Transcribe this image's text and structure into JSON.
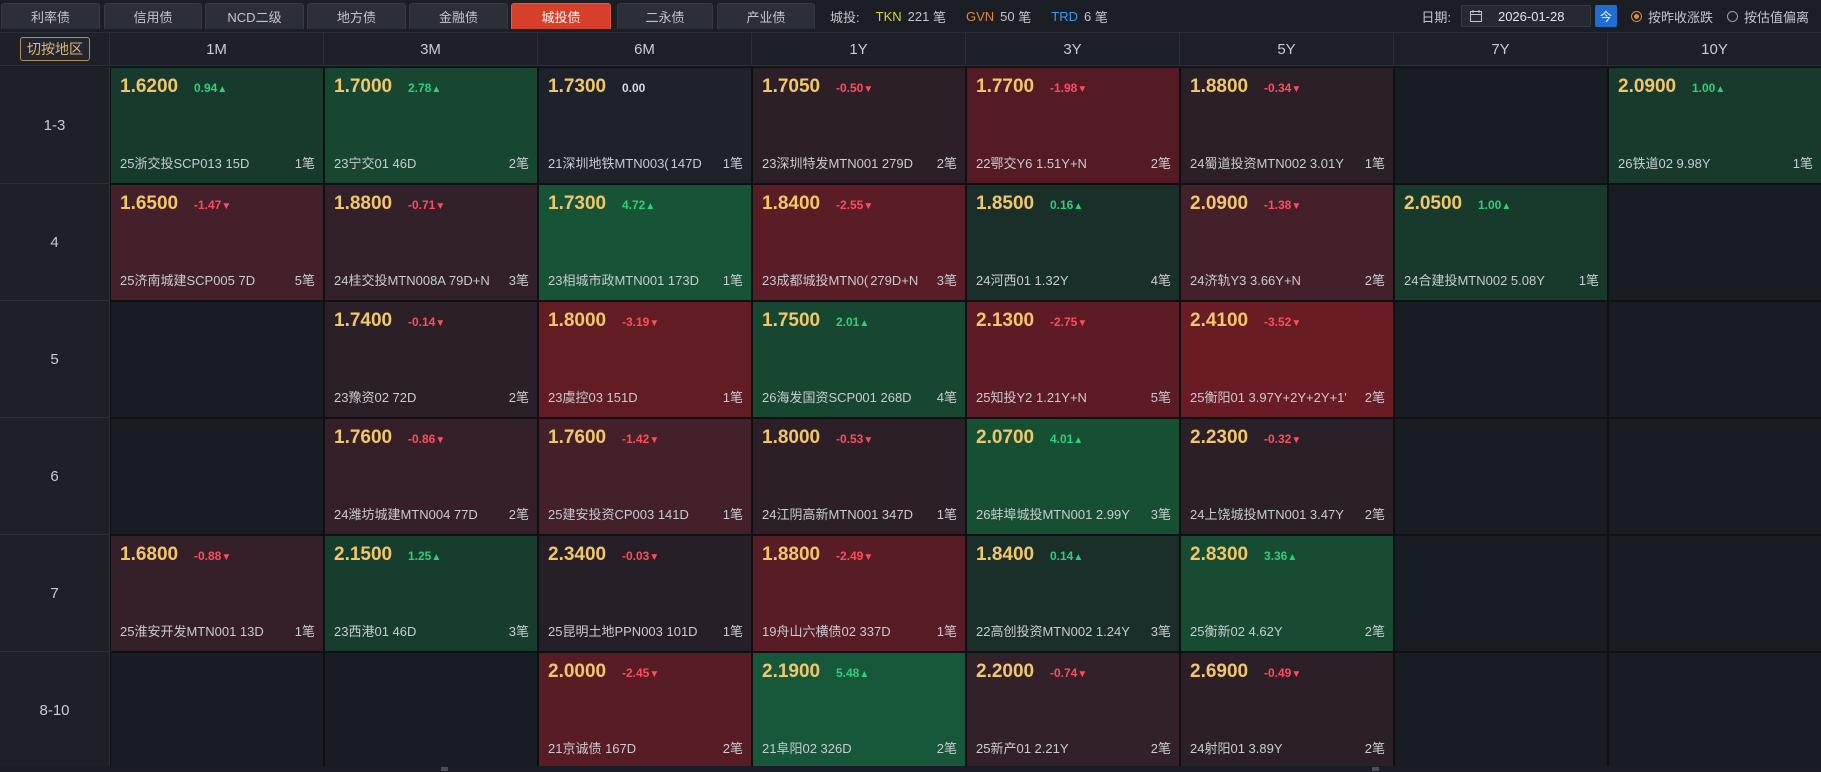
{
  "tabs": [
    {
      "label": "利率债",
      "active": false
    },
    {
      "label": "信用债",
      "active": false
    },
    {
      "label": "NCD二级",
      "active": false
    },
    {
      "label": "地方债",
      "active": false
    },
    {
      "label": "金融债",
      "active": false
    },
    {
      "label": "城投债",
      "active": true
    },
    {
      "label": "二永债",
      "active": false
    },
    {
      "label": "产业债",
      "active": false
    }
  ],
  "summary": {
    "label": "城投:",
    "sources": [
      {
        "code": "TKN",
        "count": "221",
        "unit": "笔",
        "color": "#d8d33b"
      },
      {
        "code": "GVN",
        "count": "50",
        "unit": "笔",
        "color": "#e0893a"
      },
      {
        "code": "TRD",
        "count": "6",
        "unit": "笔",
        "color": "#3d9bf0"
      }
    ]
  },
  "date": {
    "label": "日期:",
    "value": "2026-01-28",
    "today_label": "今"
  },
  "radios": [
    {
      "label": "按昨收涨跌",
      "checked": true
    },
    {
      "label": "按估值偏离",
      "checked": false
    }
  ],
  "region_button": "切按地区",
  "columns": [
    "1M",
    "3M",
    "6M",
    "1Y",
    "3Y",
    "5Y",
    "7Y",
    "10Y"
  ],
  "rows": [
    "1-3",
    "4",
    "5",
    "6",
    "7",
    "8-10"
  ],
  "colors": {
    "up": "#2fd07a",
    "down": "#ff4d5a",
    "flat": "#d8dbe0",
    "yield": "#f2c66a"
  },
  "cells": [
    [
      {
        "yield": "1.6200",
        "change": "0.94",
        "dir": "up",
        "bond": "25浙交投SCP013 15D",
        "trades": "1笔",
        "bg": "#173a2c"
      },
      {
        "yield": "1.7000",
        "change": "2.78",
        "dir": "up",
        "bond": "23宁交01 46D",
        "trades": "2笔",
        "bg": "#174631"
      },
      {
        "yield": "1.7300",
        "change": "0.00",
        "dir": "flat",
        "bond": "21深圳地铁MTN003(",
        "extra": "147D",
        "trades": "1笔",
        "bg": "#1d222b"
      },
      {
        "yield": "1.7050",
        "change": "-0.50",
        "dir": "down",
        "bond": "23深圳特发MTN001 279D",
        "trades": "2笔",
        "bg": "#2d1f28"
      },
      {
        "yield": "1.7700",
        "change": "-1.98",
        "dir": "down",
        "bond": "22鄂交Y6 1.51Y+N",
        "trades": "2笔",
        "bg": "#541b25"
      },
      {
        "yield": "1.8800",
        "change": "-0.34",
        "dir": "down",
        "bond": "24蜀道投资MTN002 3.01Y",
        "trades": "1笔",
        "bg": "#2b1f28"
      },
      null,
      {
        "yield": "2.0900",
        "change": "1.00",
        "dir": "up",
        "bond": "26铁道02 9.98Y",
        "trades": "1笔",
        "bg": "#173a2c"
      }
    ],
    [
      {
        "yield": "1.6500",
        "change": "-1.47",
        "dir": "down",
        "bond": "25济南城建SCP005 7D",
        "trades": "5笔",
        "bg": "#43202a"
      },
      {
        "yield": "1.8800",
        "change": "-0.71",
        "dir": "down",
        "bond": "24桂交投MTN008A 79D+N",
        "trades": "3笔",
        "bg": "#32202a"
      },
      {
        "yield": "1.7300",
        "change": "4.72",
        "dir": "up",
        "bond": "23相城市政MTN001 173D",
        "trades": "1笔",
        "bg": "#175335"
      },
      {
        "yield": "1.8400",
        "change": "-2.55",
        "dir": "down",
        "bond": "23成都城投MTN0(",
        "extra": "279D+N",
        "trades": "3笔",
        "bg": "#5a1c25"
      },
      {
        "yield": "1.8500",
        "change": "0.16",
        "dir": "up",
        "bond": "24河西01 1.32Y",
        "trades": "4笔",
        "bg": "#1b2f2a"
      },
      {
        "yield": "2.0900",
        "change": "-1.38",
        "dir": "down",
        "bond": "24济轨Y3 3.66Y+N",
        "trades": "2笔",
        "bg": "#43202a"
      },
      {
        "yield": "2.0500",
        "change": "1.00",
        "dir": "up",
        "bond": "24合建投MTN002 5.08Y",
        "trades": "1笔",
        "bg": "#173a2c"
      },
      null
    ],
    [
      null,
      {
        "yield": "1.7400",
        "change": "-0.14",
        "dir": "down",
        "bond": "23豫资02 72D",
        "trades": "2笔",
        "bg": "#2b1f28"
      },
      {
        "yield": "1.8000",
        "change": "-3.19",
        "dir": "down",
        "bond": "23虞控03 151D",
        "trades": "1笔",
        "bg": "#621c24"
      },
      {
        "yield": "1.7500",
        "change": "2.01",
        "dir": "up",
        "bond": "26海发国资SCP001 268D",
        "trades": "4笔",
        "bg": "#174631"
      },
      {
        "yield": "2.1300",
        "change": "-2.75",
        "dir": "down",
        "bond": "25知投Y2 1.21Y+N",
        "trades": "5笔",
        "bg": "#5c1b25"
      },
      {
        "yield": "2.4100",
        "change": "-3.52",
        "dir": "down",
        "bond": "25衡阳01 3.97Y+2Y+2Y+1'",
        "trades": "2笔",
        "bg": "#691c24"
      },
      null,
      null
    ],
    [
      null,
      {
        "yield": "1.7600",
        "change": "-0.86",
        "dir": "down",
        "bond": "24潍坊城建MTN004 77D",
        "trades": "2笔",
        "bg": "#35202a"
      },
      {
        "yield": "1.7600",
        "change": "-1.42",
        "dir": "down",
        "bond": "25建安投资CP003 141D",
        "trades": "1笔",
        "bg": "#43202a"
      },
      {
        "yield": "1.8000",
        "change": "-0.53",
        "dir": "down",
        "bond": "24江阴高新MTN001 347D",
        "trades": "1笔",
        "bg": "#2d1f28"
      },
      {
        "yield": "2.0700",
        "change": "4.01",
        "dir": "up",
        "bond": "26蚌埠城投MTN001 2.99Y",
        "trades": "3笔",
        "bg": "#174f33"
      },
      {
        "yield": "2.2300",
        "change": "-0.32",
        "dir": "down",
        "bond": "24上饶城投MTN001 3.47Y",
        "trades": "2笔",
        "bg": "#2b1f28"
      },
      null,
      null
    ],
    [
      {
        "yield": "1.6800",
        "change": "-0.88",
        "dir": "down",
        "bond": "25淮安开发MTN001 13D",
        "trades": "1笔",
        "bg": "#35202a"
      },
      {
        "yield": "2.1500",
        "change": "1.25",
        "dir": "up",
        "bond": "23西港01 46D",
        "trades": "3笔",
        "bg": "#173d2e"
      },
      {
        "yield": "2.3400",
        "change": "-0.03",
        "dir": "down",
        "bond": "25昆明土地PPN003 101D",
        "trades": "1笔",
        "bg": "#271f28"
      },
      {
        "yield": "1.8800",
        "change": "-2.49",
        "dir": "down",
        "bond": "19舟山六横债02 337D",
        "trades": "1笔",
        "bg": "#581c25"
      },
      {
        "yield": "1.8400",
        "change": "0.14",
        "dir": "up",
        "bond": "22高创投资MTN002 1.24Y",
        "trades": "3笔",
        "bg": "#1b2f2a"
      },
      {
        "yield": "2.8300",
        "change": "3.36",
        "dir": "up",
        "bond": "25衡新02 4.62Y",
        "trades": "2笔",
        "bg": "#174b32"
      },
      null,
      null
    ],
    [
      null,
      null,
      {
        "yield": "2.0000",
        "change": "-2.45",
        "dir": "down",
        "bond": "21京诚债 167D",
        "trades": "2笔",
        "bg": "#581c25"
      },
      {
        "yield": "2.1900",
        "change": "5.48",
        "dir": "up",
        "bond": "21阜阳02 326D",
        "trades": "2笔",
        "bg": "#17583a"
      },
      {
        "yield": "2.2000",
        "change": "-0.74",
        "dir": "down",
        "bond": "25新产01 2.21Y",
        "trades": "2笔",
        "bg": "#32202a"
      },
      {
        "yield": "2.6900",
        "change": "-0.49",
        "dir": "down",
        "bond": "24射阳01 3.89Y",
        "trades": "2笔",
        "bg": "#2d1f28"
      },
      null,
      null
    ]
  ]
}
